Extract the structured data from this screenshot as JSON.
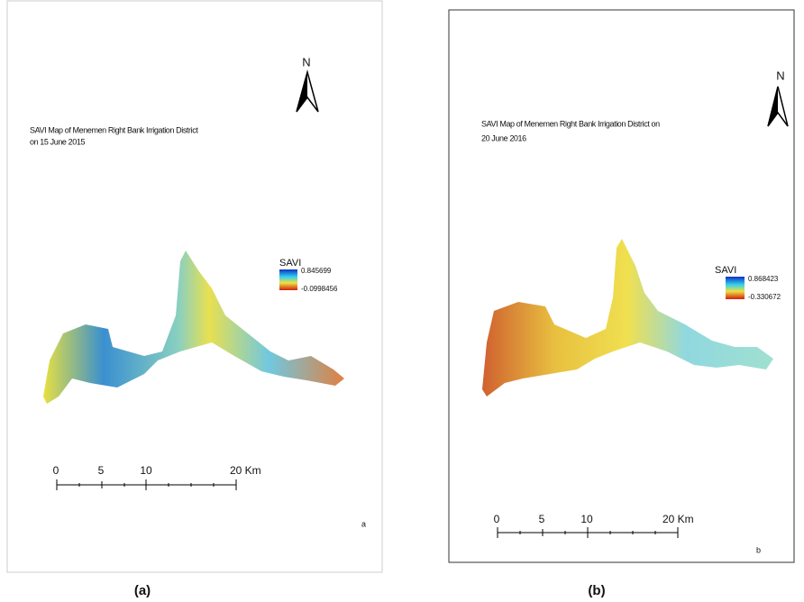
{
  "panels": [
    {
      "title_lines": [
        "SAVI Map of Menemen Right Bank Irrigation District",
        "on 15 June 2015"
      ],
      "north": "N",
      "legend": {
        "label": "SAVI",
        "max": "0.845699",
        "min": "-0.0998456"
      },
      "scale_labels": [
        "0",
        "5",
        "10",
        "20 Km"
      ],
      "corner_letter": "a",
      "caption": "(a)"
    },
    {
      "title_lines": [
        "SAVI Map of Menemen Right Bank Irrigation District on",
        "20 June 2016"
      ],
      "north": "N",
      "legend": {
        "label": "SAVI",
        "max": "0.868423",
        "min": "-0.330672"
      },
      "scale_labels": [
        "0",
        "5",
        "10",
        "20 Km"
      ],
      "corner_letter": "b",
      "caption": "(b)"
    }
  ]
}
